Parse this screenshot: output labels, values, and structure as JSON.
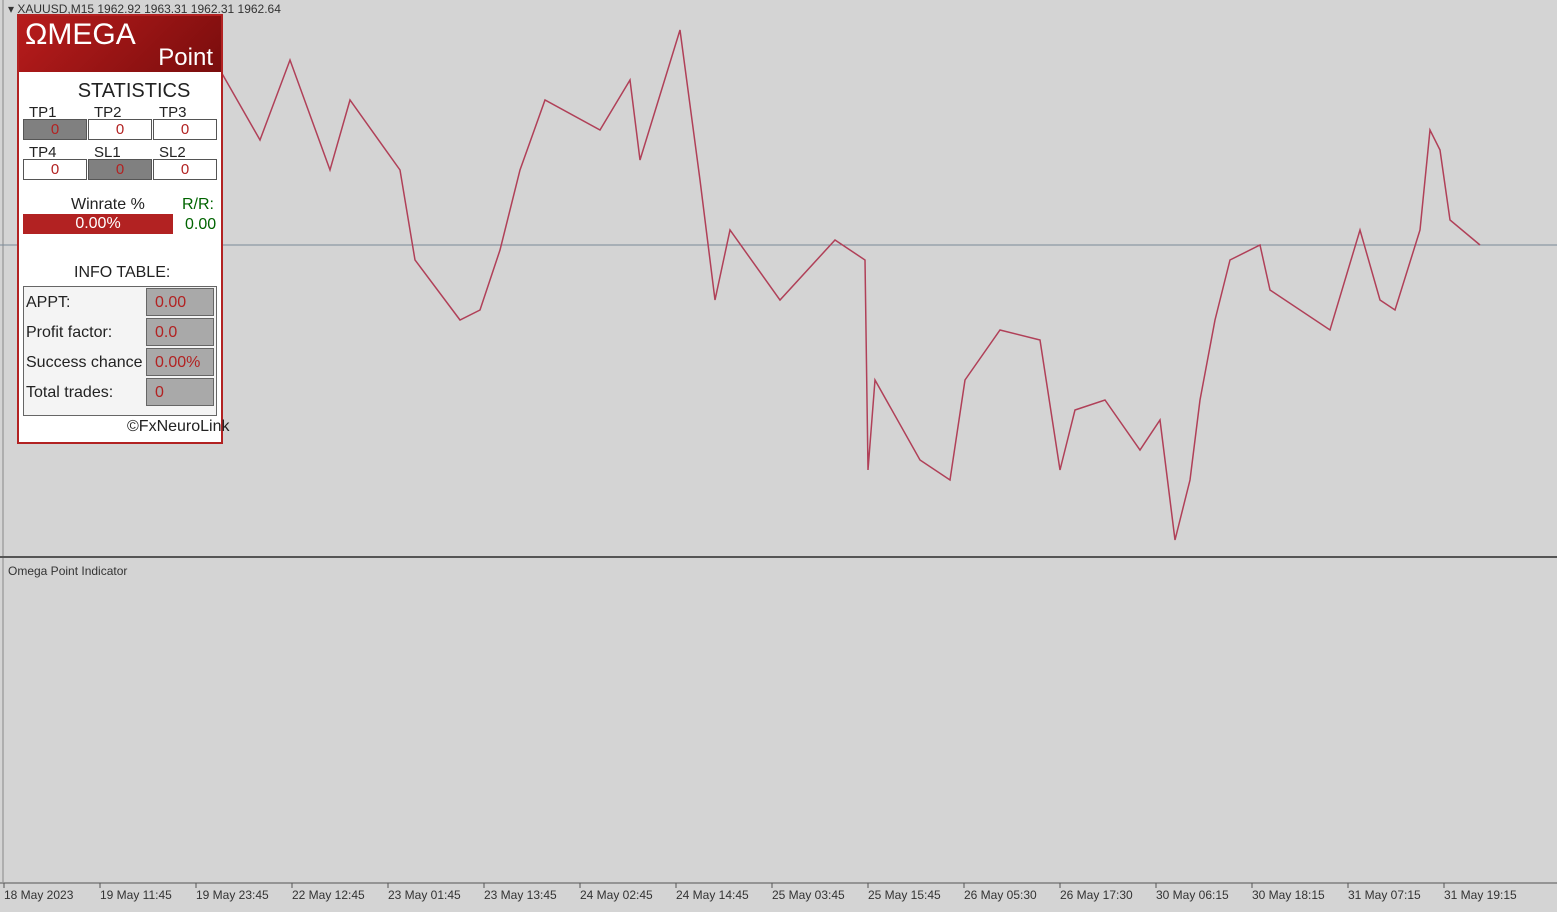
{
  "header": {
    "symbol_info": "XAUUSD,M15  1962.92 1963.31 1962.31 1962.64"
  },
  "panel": {
    "logo": {
      "main": "ΩMEGA",
      "sub": "Point"
    },
    "statistics": {
      "title": "STATISTICS",
      "cells": [
        {
          "label": "TP1",
          "value": "0"
        },
        {
          "label": "TP2",
          "value": "0"
        },
        {
          "label": "TP3",
          "value": "0"
        },
        {
          "label": "TP4",
          "value": "0"
        },
        {
          "label": "SL1",
          "value": "0"
        },
        {
          "label": "SL2",
          "value": "0"
        }
      ],
      "winrate_label": "Winrate %",
      "winrate_value": "0.00%",
      "rr_label": "R/R:",
      "rr_value": "0.00"
    },
    "info_table": {
      "title": "INFO TABLE:",
      "rows": [
        [
          "APPT:",
          "0.00"
        ],
        [
          "Profit factor:",
          "0.0"
        ],
        [
          "Success chance",
          "0.00%"
        ],
        [
          "Total trades:",
          "0"
        ]
      ]
    },
    "copyright": "©FxNeuroLink"
  },
  "subwindow": {
    "title": "Omega Point Indicator"
  },
  "time_axis": {
    "labels": [
      "18 May 2023",
      "19 May 11:45",
      "19 May 23:45",
      "22 May 12:45",
      "23 May 01:45",
      "23 May 13:45",
      "24 May 02:45",
      "24 May 14:45",
      "25 May 03:45",
      "25 May 15:45",
      "26 May 05:30",
      "26 May 17:30",
      "30 May 06:15",
      "30 May 18:15",
      "31 May 07:15",
      "31 May 19:15"
    ]
  }
}
